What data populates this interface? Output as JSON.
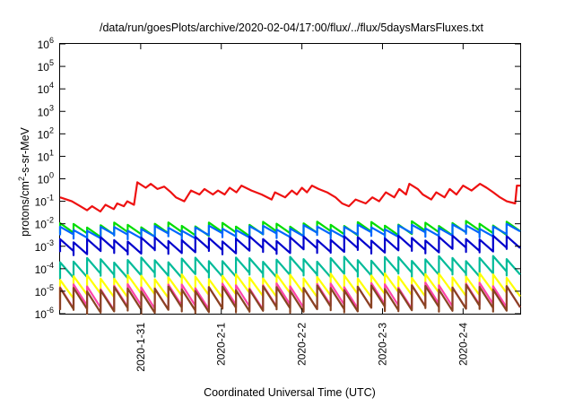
{
  "chart_data": {
    "type": "line",
    "title": "/data/run/goesPlots/archive/2020-02-04/17:00/flux/../flux/5daysMarsFluxes.txt",
    "xlabel": "Coordinated Universal Time (UTC)",
    "ylabel": {
      "prefix": "protons/cm",
      "sup": "2",
      "suffix": "-s-sr-MeV"
    },
    "yscale": "log",
    "ylim": [
      1e-06,
      1000000.0
    ],
    "xlim": [
      "2020-01-30T00:00",
      "2020-02-04T17:00"
    ],
    "grid": false,
    "legend": "none",
    "yticks": [
      {
        "value": 1e-06,
        "base": "10",
        "exp": "-6"
      },
      {
        "value": 1e-05,
        "base": "10",
        "exp": "-5"
      },
      {
        "value": 0.0001,
        "base": "10",
        "exp": "-4"
      },
      {
        "value": 0.001,
        "base": "10",
        "exp": "-3"
      },
      {
        "value": 0.01,
        "base": "10",
        "exp": "-2"
      },
      {
        "value": 0.1,
        "base": "10",
        "exp": "-1"
      },
      {
        "value": 1,
        "base": "10",
        "exp": "0"
      },
      {
        "value": 10,
        "base": "10",
        "exp": "1"
      },
      {
        "value": 100,
        "base": "10",
        "exp": "2"
      },
      {
        "value": 1000,
        "base": "10",
        "exp": "3"
      },
      {
        "value": 10000,
        "base": "10",
        "exp": "4"
      },
      {
        "value": 100000,
        "base": "10",
        "exp": "5"
      },
      {
        "value": 1000000,
        "base": "10",
        "exp": "6"
      }
    ],
    "xticks": [
      {
        "value": "2020-01-31T00:00",
        "label": "2020-1-31"
      },
      {
        "value": "2020-02-01T00:00",
        "label": "2020-2-1"
      },
      {
        "value": "2020-02-02T00:00",
        "label": "2020-2-2"
      },
      {
        "value": "2020-02-03T00:00",
        "label": "2020-2-3"
      },
      {
        "value": "2020-02-04T00:00",
        "label": "2020-2-4"
      }
    ],
    "series": [
      {
        "color": "#ee1111",
        "x": [
          "2020-01-30T00:00",
          "2020-01-30T03:30",
          "2020-01-30T06:00",
          "2020-01-30T08:00",
          "2020-01-30T09:30",
          "2020-01-30T12:00",
          "2020-01-30T13:30",
          "2020-01-30T16:00",
          "2020-01-30T17:00",
          "2020-01-30T19:00",
          "2020-01-30T20:00",
          "2020-01-30T22:00",
          "2020-01-30T23:00",
          "2020-01-31T01:30",
          "2020-01-31T03:00",
          "2020-01-31T05:00",
          "2020-01-31T07:00",
          "2020-01-31T09:00",
          "2020-01-31T10:30",
          "2020-01-31T13:00",
          "2020-01-31T15:00",
          "2020-01-31T17:30",
          "2020-01-31T19:00",
          "2020-01-31T21:30",
          "2020-01-31T23:00",
          "2020-02-01T01:00",
          "2020-02-01T02:30",
          "2020-02-01T04:30",
          "2020-02-01T06:00",
          "2020-02-01T09:00",
          "2020-02-01T12:00",
          "2020-02-01T15:00",
          "2020-02-01T16:00",
          "2020-02-01T19:00",
          "2020-02-01T21:00",
          "2020-02-01T22:30",
          "2020-02-02T00:00",
          "2020-02-02T01:30",
          "2020-02-02T03:00",
          "2020-02-02T05:00",
          "2020-02-02T07:30",
          "2020-02-02T10:00",
          "2020-02-02T12:00",
          "2020-02-02T14:00",
          "2020-02-02T16:00",
          "2020-02-02T19:00",
          "2020-02-02T21:00",
          "2020-02-02T23:00",
          "2020-02-03T01:00",
          "2020-02-03T03:30",
          "2020-02-03T05:00",
          "2020-02-03T07:00",
          "2020-02-03T08:00",
          "2020-02-03T10:30",
          "2020-02-03T12:00",
          "2020-02-03T14:30",
          "2020-02-03T16:00",
          "2020-02-03T18:30",
          "2020-02-03T20:00",
          "2020-02-03T22:00",
          "2020-02-04T00:00",
          "2020-02-04T02:30",
          "2020-02-04T05:00",
          "2020-02-04T07:00",
          "2020-02-04T09:00",
          "2020-02-04T11:00",
          "2020-02-04T13:00",
          "2020-02-04T15:30",
          "2020-02-04T16:00",
          "2020-02-04T17:00"
        ],
        "y": [
          0.15,
          0.1,
          0.06,
          0.04,
          0.06,
          0.035,
          0.07,
          0.045,
          0.08,
          0.06,
          0.1,
          0.07,
          0.7,
          0.4,
          0.6,
          0.35,
          0.45,
          0.25,
          0.15,
          0.1,
          0.3,
          0.2,
          0.35,
          0.2,
          0.3,
          0.2,
          0.4,
          0.25,
          0.5,
          0.3,
          0.2,
          0.12,
          0.25,
          0.15,
          0.3,
          0.2,
          0.4,
          0.25,
          0.5,
          0.35,
          0.25,
          0.15,
          0.08,
          0.06,
          0.12,
          0.08,
          0.15,
          0.1,
          0.25,
          0.15,
          0.35,
          0.2,
          0.6,
          0.35,
          0.2,
          0.12,
          0.25,
          0.15,
          0.35,
          0.2,
          0.5,
          0.3,
          0.6,
          0.4,
          0.25,
          0.15,
          0.1,
          0.08,
          0.5,
          0.5
        ]
      },
      {
        "color": "#00dd00",
        "base_start": 0.004,
        "base_end": 0.005,
        "peak_scale": 2.2
      },
      {
        "color": "#0066ff",
        "base_start": 0.003,
        "base_end": 0.004,
        "peak_scale": 2.0
      },
      {
        "color": "#0000cc",
        "base_start": 0.0008,
        "base_end": 0.001,
        "peak_scale": 2.5
      },
      {
        "color": "#00bb99",
        "base_start": 8e-05,
        "base_end": 0.0001,
        "peak_scale": 3.0
      },
      {
        "color": "#ffff00",
        "base_start": 1.2e-05,
        "base_end": 1.5e-05,
        "peak_scale": 3.5
      },
      {
        "color": "#ff44aa",
        "base_start": 4e-06,
        "base_end": 5e-06,
        "peak_scale": 4.0
      },
      {
        "color": "#884422",
        "base_start": 3e-06,
        "base_end": 4e-06,
        "peak_scale": 4.0
      }
    ]
  }
}
